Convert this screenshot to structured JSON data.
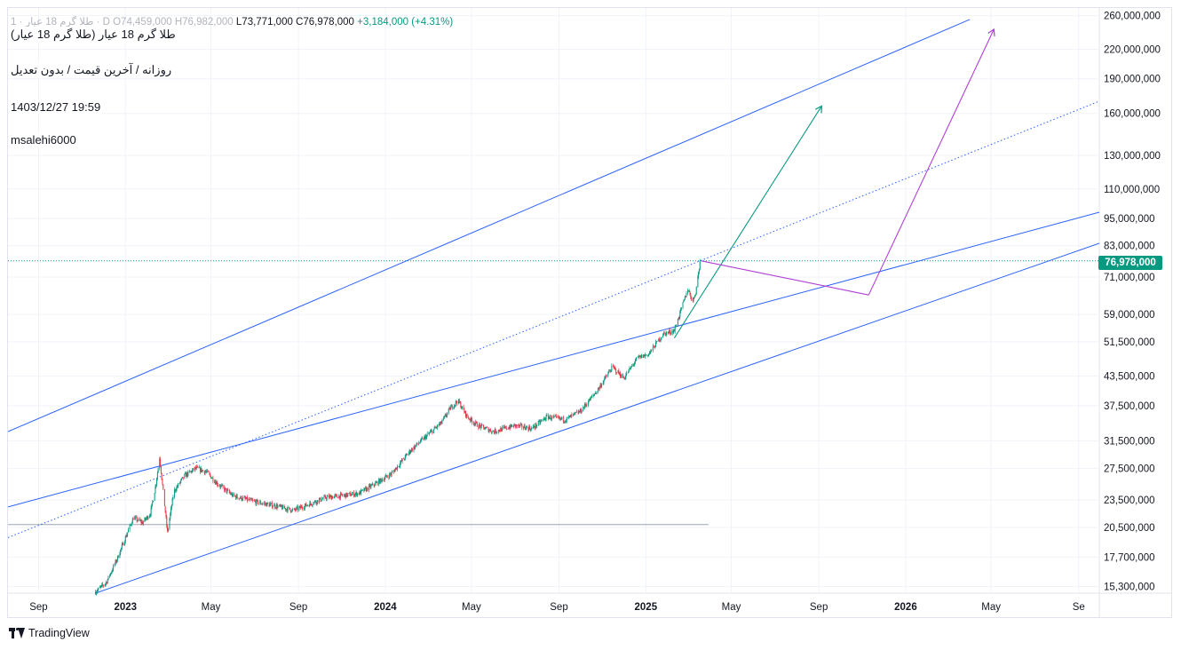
{
  "header": {
    "symbol_faded": "طلا گرم 18 عیار · 1 · D",
    "open": "O74,459,000",
    "high": "H76,982,000",
    "low": "L73,771,000",
    "close": "C76,978,000",
    "change": "+3,184,000 (+4.31%)",
    "title": "طلا گرم 18 عیار (طلا گرم 18 عیار)",
    "subtitle": "روزانه / آخرین قیمت / بدون تعدیل",
    "datetime": "1403/12/27  19:59",
    "author": "msalehi6000"
  },
  "price_tag": "76,978,000",
  "footer": {
    "brand": "TradingView"
  },
  "chart_data": {
    "type": "candlestick",
    "scale": "log",
    "y_range": [
      14800000,
      270000000
    ],
    "x_range": [
      "2022-07-20",
      "2026-09-30"
    ],
    "last_price": 76978000,
    "y_ticks": [
      "260,000,000",
      "220,000,000",
      "190,000,000",
      "160,000,000",
      "130,000,000",
      "110,000,000",
      "95,000,000",
      "83,000,000",
      "71,000,000",
      "59,000,000",
      "51,500,000",
      "43,500,000",
      "37,500,000",
      "31,500,000",
      "27,500,000",
      "23,500,000",
      "20,500,000",
      "17,700,000",
      "15,300,000"
    ],
    "y_tick_values": [
      260000000,
      220000000,
      190000000,
      160000000,
      130000000,
      110000000,
      95000000,
      83000000,
      71000000,
      59000000,
      51500000,
      43500000,
      37500000,
      31500000,
      27500000,
      23500000,
      20500000,
      17700000,
      15300000
    ],
    "x_ticks": [
      {
        "label": "Sep",
        "date": "2022-09-01",
        "bold": false
      },
      {
        "label": "2023",
        "date": "2023-01-01",
        "bold": true
      },
      {
        "label": "May",
        "date": "2023-05-01",
        "bold": false
      },
      {
        "label": "Sep",
        "date": "2023-09-01",
        "bold": false
      },
      {
        "label": "2024",
        "date": "2024-01-01",
        "bold": true
      },
      {
        "label": "May",
        "date": "2024-05-01",
        "bold": false
      },
      {
        "label": "Sep",
        "date": "2024-09-01",
        "bold": false
      },
      {
        "label": "2025",
        "date": "2025-01-01",
        "bold": true
      },
      {
        "label": "May",
        "date": "2025-05-01",
        "bold": false
      },
      {
        "label": "Sep",
        "date": "2025-09-01",
        "bold": false
      },
      {
        "label": "2026",
        "date": "2026-01-01",
        "bold": true
      },
      {
        "label": "May",
        "date": "2026-05-01",
        "bold": false
      },
      {
        "label": "Se",
        "date": "2026-09-01",
        "bold": false
      }
    ],
    "price_path": [
      [
        "2022-11-20",
        14900000
      ],
      [
        "2022-12-05",
        15600000
      ],
      [
        "2022-12-20",
        17500000
      ],
      [
        "2023-01-01",
        19500000
      ],
      [
        "2023-01-12",
        21500000
      ],
      [
        "2023-01-25",
        21000000
      ],
      [
        "2023-02-05",
        22000000
      ],
      [
        "2023-02-12",
        25000000
      ],
      [
        "2023-02-18",
        29000000
      ],
      [
        "2023-02-23",
        24500000
      ],
      [
        "2023-03-01",
        20000000
      ],
      [
        "2023-03-10",
        24500000
      ],
      [
        "2023-03-25",
        26500000
      ],
      [
        "2023-04-10",
        27500000
      ],
      [
        "2023-04-25",
        27000000
      ],
      [
        "2023-05-10",
        25500000
      ],
      [
        "2023-06-01",
        24000000
      ],
      [
        "2023-07-01",
        23300000
      ],
      [
        "2023-08-01",
        22800000
      ],
      [
        "2023-08-25",
        22300000
      ],
      [
        "2023-09-15",
        23000000
      ],
      [
        "2023-10-10",
        23800000
      ],
      [
        "2023-11-01",
        24000000
      ],
      [
        "2023-11-25",
        24300000
      ],
      [
        "2023-12-15",
        25300000
      ],
      [
        "2024-01-10",
        26800000
      ],
      [
        "2024-02-05",
        30000000
      ],
      [
        "2024-03-01",
        32500000
      ],
      [
        "2024-03-20",
        34500000
      ],
      [
        "2024-04-01",
        37000000
      ],
      [
        "2024-04-12",
        38500000
      ],
      [
        "2024-04-25",
        35500000
      ],
      [
        "2024-05-10",
        34000000
      ],
      [
        "2024-06-01",
        33000000
      ],
      [
        "2024-07-01",
        34000000
      ],
      [
        "2024-07-25",
        33500000
      ],
      [
        "2024-08-15",
        35500000
      ],
      [
        "2024-09-10",
        35000000
      ],
      [
        "2024-10-01",
        36500000
      ],
      [
        "2024-10-25",
        40500000
      ],
      [
        "2024-11-15",
        45500000
      ],
      [
        "2024-12-01",
        43000000
      ],
      [
        "2024-12-20",
        47500000
      ],
      [
        "2025-01-05",
        48500000
      ],
      [
        "2025-01-25",
        53500000
      ],
      [
        "2025-02-10",
        54500000
      ],
      [
        "2025-02-22",
        62000000
      ],
      [
        "2025-03-01",
        67000000
      ],
      [
        "2025-03-08",
        63000000
      ],
      [
        "2025-03-12",
        66000000
      ],
      [
        "2025-03-17",
        74400000
      ],
      [
        "2025-03-18",
        76978000
      ]
    ],
    "trend_lines": [
      {
        "style": "solid",
        "p1": [
          "2022-07-20",
          33000000
        ],
        "p2": [
          "2026-04-01",
          255000000
        ]
      },
      {
        "style": "dotted",
        "p1": [
          "2022-07-20",
          19500000
        ],
        "p2": [
          "2026-09-30",
          170000000
        ]
      },
      {
        "style": "solid",
        "p1": [
          "2022-07-20",
          22700000
        ],
        "p2": [
          "2026-09-30",
          98000000
        ]
      },
      {
        "style": "solid",
        "p1": [
          "2022-11-20",
          14800000
        ],
        "p2": [
          "2026-09-30",
          84000000
        ]
      }
    ],
    "horizontal_levels": [
      {
        "value": 76978000,
        "style": "dotted",
        "color": "#089981"
      },
      {
        "value": 20800000,
        "style": "thin",
        "color": "#9aa5b1",
        "x_end": "2025-03-30"
      }
    ],
    "arrows": [
      {
        "color": "#089981",
        "from": [
          "2025-02-10",
          52500000
        ],
        "to": [
          "2025-09-05",
          166000000
        ]
      },
      {
        "color": "#b03fd4",
        "from": [
          "2025-11-10",
          65000000
        ],
        "to": [
          "2026-05-05",
          243000000
        ]
      }
    ],
    "forecast_segment": {
      "color": "#b03fd4",
      "from": [
        "2025-03-20",
        76978000
      ],
      "to": [
        "2025-11-10",
        65000000
      ]
    },
    "colors": {
      "up": "#089981",
      "down": "#f23645",
      "line": "#2962ff",
      "grid": "#f0f3fa",
      "text": "#131722"
    }
  }
}
